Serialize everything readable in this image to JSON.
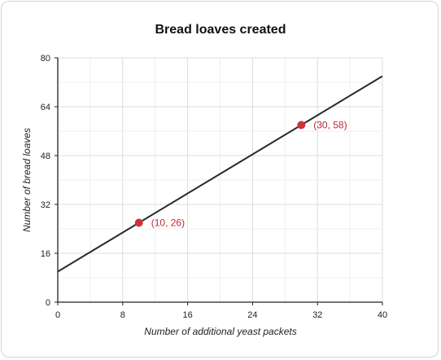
{
  "chart_data": {
    "type": "line",
    "title": "Bread loaves created",
    "xlabel": "Number of additional yeast packets",
    "ylabel": "Number of bread loaves",
    "xlim": [
      0,
      40
    ],
    "ylim": [
      0,
      80
    ],
    "x_ticks": [
      0,
      8,
      16,
      24,
      32,
      40
    ],
    "y_ticks": [
      0,
      16,
      32,
      48,
      64,
      80
    ],
    "minor_grid_step_x": 4,
    "minor_grid_step_y": 8,
    "grid": true,
    "line": {
      "slope": 1.6,
      "intercept": 10,
      "x_start": 0,
      "x_end": 40,
      "color": "#2b2b2b"
    },
    "points": [
      {
        "x": 10,
        "y": 26,
        "label": "(10, 26)"
      },
      {
        "x": 30,
        "y": 58,
        "label": "(30, 58)"
      }
    ],
    "point_color": "#d0323a",
    "label_color": "#c0282f"
  }
}
